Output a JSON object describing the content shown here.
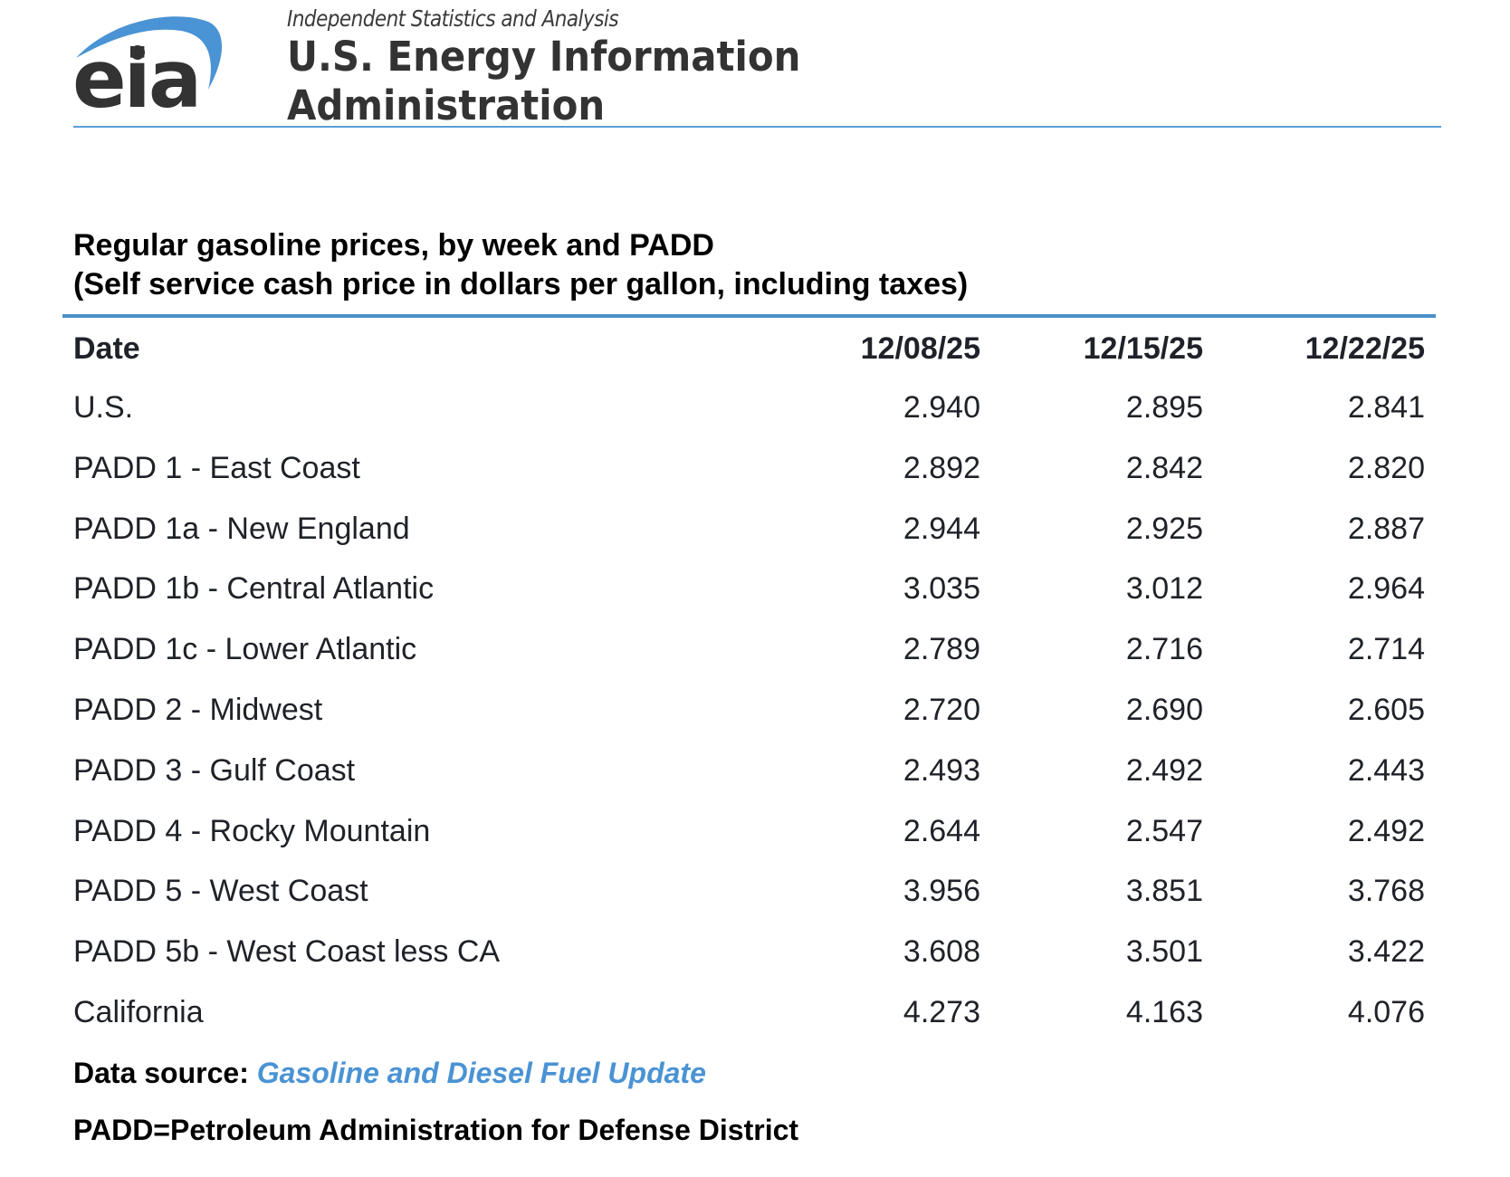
{
  "header": {
    "logo_text": "eia",
    "tagline": "Independent Statistics and Analysis",
    "org_line1": "U.S. Energy Information",
    "org_line2": "Administration",
    "brand_blue": "#4a93d4",
    "logo_dark": "#333333"
  },
  "title": {
    "line1": "Regular gasoline prices, by week and PADD",
    "line2": "(Self service cash price in dollars per gallon, including taxes)"
  },
  "table": {
    "columns": [
      "Date",
      "12/08/25",
      "12/15/25",
      "12/22/25"
    ],
    "rows": [
      {
        "label": "U.S.",
        "values": [
          "2.940",
          "2.895",
          "2.841"
        ]
      },
      {
        "label": "PADD 1 - East Coast",
        "values": [
          "2.892",
          "2.842",
          "2.820"
        ]
      },
      {
        "label": "PADD 1a - New England",
        "values": [
          "2.944",
          "2.925",
          "2.887"
        ]
      },
      {
        "label": "PADD 1b - Central Atlantic",
        "values": [
          "3.035",
          "3.012",
          "2.964"
        ]
      },
      {
        "label": "PADD 1c - Lower Atlantic",
        "values": [
          "2.789",
          "2.716",
          "2.714"
        ]
      },
      {
        "label": "PADD 2 - Midwest",
        "values": [
          "2.720",
          "2.690",
          "2.605"
        ]
      },
      {
        "label": "PADD 3 - Gulf Coast",
        "values": [
          "2.493",
          "2.492",
          "2.443"
        ]
      },
      {
        "label": "PADD 4 - Rocky Mountain",
        "values": [
          "2.644",
          "2.547",
          "2.492"
        ]
      },
      {
        "label": "PADD 5 - West Coast",
        "values": [
          "3.956",
          "3.851",
          "3.768"
        ]
      },
      {
        "label": "PADD 5b - West Coast less CA",
        "values": [
          "3.608",
          "3.501",
          "3.422"
        ]
      },
      {
        "label": "California",
        "values": [
          "4.273",
          "4.163",
          "4.076"
        ]
      }
    ]
  },
  "footer": {
    "source_label": "Data source: ",
    "source_link": "Gasoline and Diesel Fuel Update",
    "note": "PADD=Petroleum Administration for Defense District"
  }
}
